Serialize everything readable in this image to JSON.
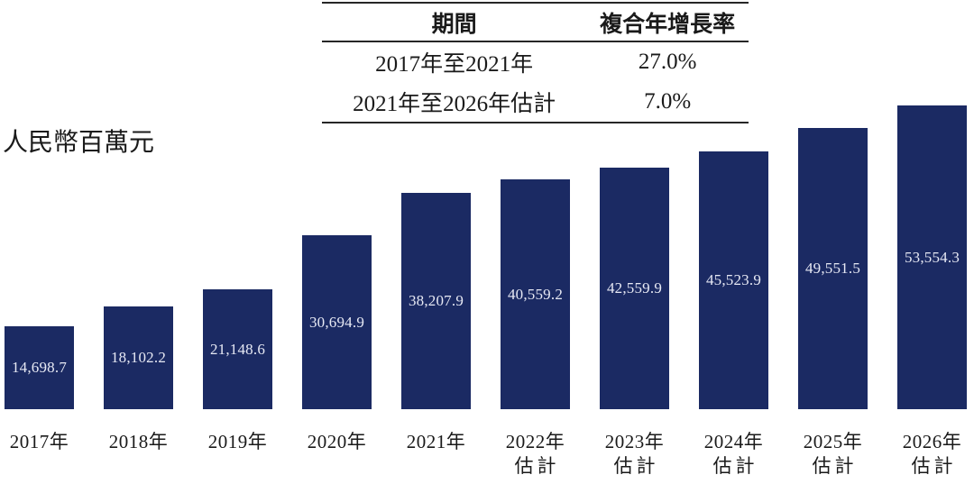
{
  "table": {
    "headers": {
      "period": "期間",
      "cagr": "複合年增長率"
    },
    "rows": [
      {
        "period": "2017年至2021年",
        "cagr": "27.0%"
      },
      {
        "period": "2021年至2026年估計",
        "cagr": "7.0%"
      }
    ]
  },
  "chart_data": {
    "type": "bar",
    "title": "",
    "ylabel": "人民幣百萬元",
    "xlabel": "",
    "ylim": [
      0,
      53554.3
    ],
    "grid": false,
    "legend": "none",
    "categories": [
      [
        "2017年"
      ],
      [
        "2018年"
      ],
      [
        "2019年"
      ],
      [
        "2020年"
      ],
      [
        "2021年"
      ],
      [
        "2022年",
        "估計"
      ],
      [
        "2023年",
        "估計"
      ],
      [
        "2024年",
        "估計"
      ],
      [
        "2025年",
        "估計"
      ],
      [
        "2026年",
        "估計"
      ]
    ],
    "values": [
      14698.7,
      18102.2,
      21148.6,
      30694.9,
      38207.9,
      40559.2,
      42559.9,
      45523.9,
      49551.5,
      53554.3
    ],
    "value_labels": [
      "14,698.7",
      "18,102.2",
      "21,148.6",
      "30,694.9",
      "38,207.9",
      "40,559.2",
      "42,559.9",
      "45,523.9",
      "49,551.5",
      "53,554.3"
    ]
  },
  "colors": {
    "bar": "#1b2a63",
    "bar_value_text": "#e7e9f4",
    "text": "#1a1a1a"
  }
}
